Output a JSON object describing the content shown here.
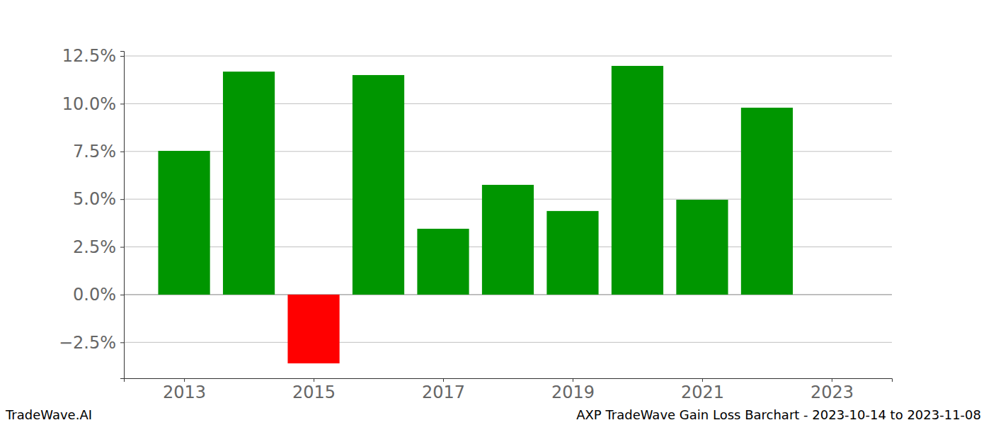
{
  "chart_data": {
    "type": "bar",
    "title": "AXP TradeWave Gain Loss Barchart - 2023-10-14 to 2023-11-08",
    "annotations": [
      "TradeWave.AI"
    ],
    "x": [
      2013,
      2014,
      2015,
      2016,
      2017,
      2018,
      2019,
      2020,
      2021,
      2022
    ],
    "values": [
      7.53,
      11.68,
      -3.6,
      11.5,
      3.45,
      5.75,
      4.38,
      11.98,
      4.97,
      9.79
    ],
    "colors": [
      "#009600",
      "#009600",
      "#ff0000",
      "#009600",
      "#009600",
      "#009600",
      "#009600",
      "#009600",
      "#009600",
      "#009600"
    ],
    "xlim": [
      2012.07,
      2023.93
    ],
    "xticks": [
      2013,
      2015,
      2017,
      2019,
      2021,
      2023
    ],
    "ylim": [
      -4.38,
      12.76
    ],
    "yticks": [
      {
        "value": -2.5,
        "label": "−2.5%"
      },
      {
        "value": 0,
        "label": "0.0%"
      },
      {
        "value": 2.5,
        "label": "2.5%"
      },
      {
        "value": 5,
        "label": "5.0%"
      },
      {
        "value": 7.5,
        "label": "7.5%"
      },
      {
        "value": 10,
        "label": "10.0%"
      },
      {
        "value": 12.5,
        "label": "12.5%"
      }
    ],
    "grid": true
  }
}
